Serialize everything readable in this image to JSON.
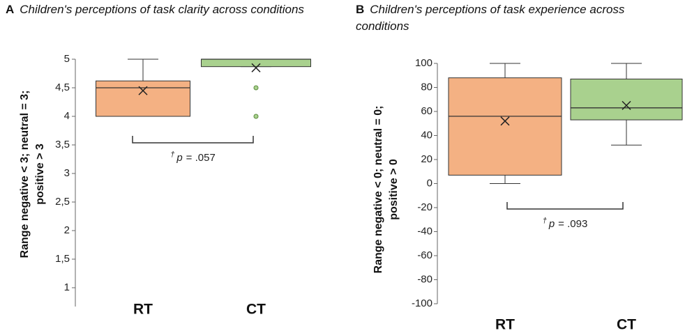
{
  "chart_data": [
    {
      "type": "box",
      "panel": "A",
      "title": "Children's perceptions of task clarity across conditions",
      "ylabel": "Range negative < 3; neutral = 3; positive > 3",
      "categories": [
        "RT",
        "CT"
      ],
      "colors": [
        "#f4b183",
        "#a9d18e"
      ],
      "boxes": [
        {
          "min": 4,
          "q1": 4,
          "median": 4.5,
          "q3": 4.62,
          "max": 5,
          "mean": 4.45,
          "outliers": []
        },
        {
          "min": 4.87,
          "q1": 4.87,
          "median": 5,
          "q3": 5,
          "max": 5,
          "mean": 4.85,
          "outliers": [
            4.5,
            4
          ]
        }
      ],
      "ylim": [
        1,
        5
      ],
      "yticks": [
        1,
        {
          "value": 1.5,
          "label": "1,5"
        },
        2,
        {
          "value": 2.5,
          "label": "2,5"
        },
        3,
        {
          "value": 3.5,
          "label": "3,5"
        },
        4,
        {
          "value": 4.5,
          "label": "4,5"
        },
        5
      ],
      "annotation": {
        "symbol": "†",
        "label": "p",
        "text": "= .057"
      }
    },
    {
      "type": "box",
      "panel": "B",
      "title": "Children's perceptions of task experience across conditions",
      "ylabel": "Range negative < 0; neutral = 0; positive > 0",
      "categories": [
        "RT",
        "CT"
      ],
      "colors": [
        "#f4b183",
        "#a9d18e"
      ],
      "boxes": [
        {
          "min": 0,
          "q1": 7,
          "median": 56,
          "q3": 88,
          "max": 100,
          "mean": 52,
          "outliers": []
        },
        {
          "min": 32,
          "q1": 53,
          "median": 63,
          "q3": 87,
          "max": 100,
          "mean": 65,
          "outliers": []
        }
      ],
      "ylim": [
        -100,
        100
      ],
      "yticks": [
        -100,
        -80,
        -60,
        -40,
        -20,
        0,
        20,
        40,
        60,
        80,
        100
      ],
      "annotation": {
        "symbol": "†",
        "label": "p",
        "text": "= .093"
      }
    }
  ]
}
